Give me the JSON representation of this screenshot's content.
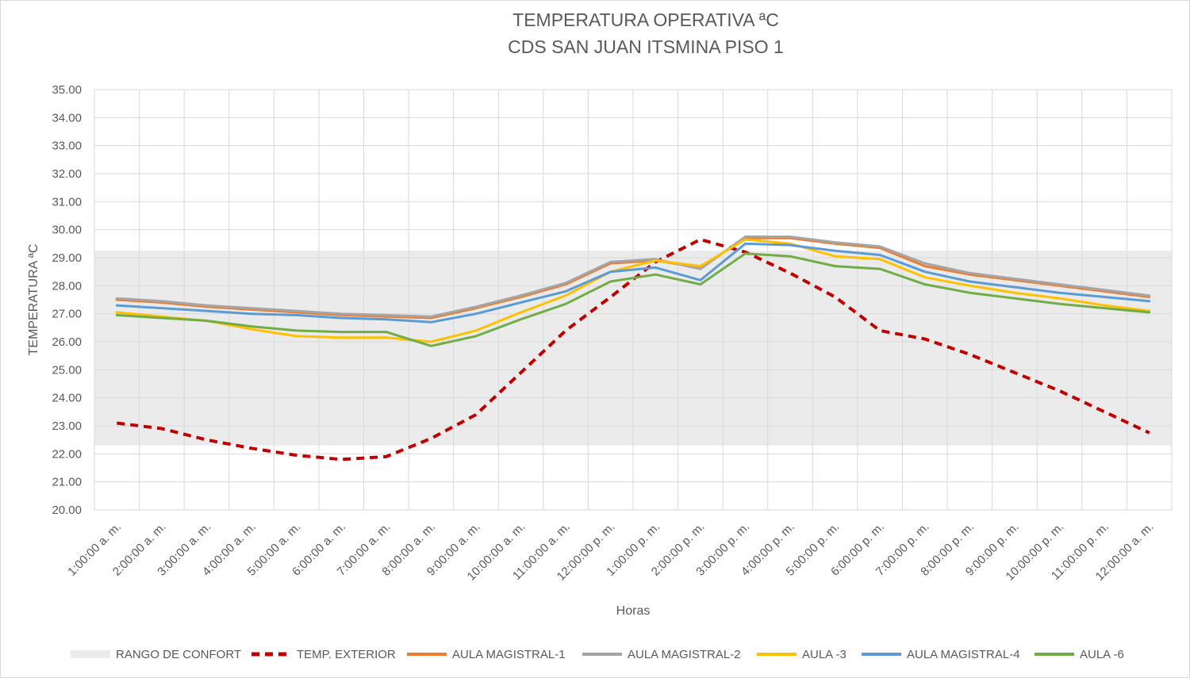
{
  "chart_data": {
    "type": "line",
    "title": "TEMPERATURA OPERATIVA ªC",
    "subtitle": "CDS SAN JUAN ITSMINA PISO 1",
    "xlabel": "Horas",
    "ylabel": "TEMPERATURA ªC",
    "ylim": [
      20,
      35
    ],
    "ystep": 1,
    "grid": true,
    "legend_position": "bottom",
    "categories": [
      "1:00:00 a. m.",
      "2:00:00 a. m.",
      "3:00:00 a. m.",
      "4:00:00 a. m.",
      "5:00:00 a. m.",
      "6:00:00 a. m.",
      "7:00:00 a. m.",
      "8:00:00 a. m.",
      "9:00:00 a. m.",
      "10:00:00 a. m.",
      "11:00:00 a. m.",
      "12:00:00 p. m.",
      "1:00:00 p. m.",
      "2:00:00 p. m.",
      "3:00:00 p. m.",
      "4:00:00 p. m.",
      "5:00:00 p. m.",
      "6:00:00 p. m.",
      "7:00:00 p. m.",
      "8:00:00 p. m.",
      "9:00:00 p. m.",
      "10:00:00 p. m.",
      "11:00:00 p. m.",
      "12:00:00 a. m."
    ],
    "comfort_band": {
      "name": "RANGO DE CONFORT",
      "low": 22.3,
      "high": 29.25,
      "color": "#ebebeb"
    },
    "series": [
      {
        "name": "TEMP. EXTERIOR",
        "color": "#c00000",
        "dashed": true,
        "width": 4,
        "values": [
          23.1,
          22.9,
          22.5,
          22.2,
          21.95,
          21.8,
          21.9,
          22.55,
          23.4,
          24.9,
          26.4,
          27.6,
          28.85,
          29.65,
          29.2,
          28.45,
          27.6,
          26.4,
          26.1,
          25.55,
          24.9,
          24.25,
          23.5,
          22.75
        ]
      },
      {
        "name": "AULA MAGISTRAL-1",
        "color": "#ed7d31",
        "dashed": false,
        "width": 3,
        "values": [
          27.5,
          27.4,
          27.25,
          27.15,
          27.05,
          26.95,
          26.9,
          26.85,
          27.2,
          27.6,
          28.05,
          28.8,
          28.9,
          28.65,
          29.7,
          29.7,
          29.5,
          29.35,
          28.7,
          28.4,
          28.2,
          28.0,
          27.8,
          27.6
        ]
      },
      {
        "name": "AULA MAGISTRAL-2",
        "color": "#a5a5a5",
        "dashed": false,
        "width": 3,
        "values": [
          27.55,
          27.45,
          27.3,
          27.2,
          27.1,
          27.0,
          26.95,
          26.9,
          27.25,
          27.65,
          28.1,
          28.85,
          28.95,
          28.6,
          29.75,
          29.75,
          29.55,
          29.4,
          28.8,
          28.45,
          28.25,
          28.05,
          27.85,
          27.65
        ]
      },
      {
        "name": "AULA -3",
        "color": "#ffc000",
        "dashed": false,
        "width": 3,
        "values": [
          27.05,
          26.9,
          26.75,
          26.45,
          26.2,
          26.15,
          26.15,
          26.0,
          26.4,
          27.05,
          27.65,
          28.5,
          28.9,
          28.7,
          29.65,
          29.5,
          29.05,
          28.95,
          28.3,
          28.0,
          27.75,
          27.55,
          27.3,
          27.1
        ]
      },
      {
        "name": "AULA MAGISTRAL-4",
        "color": "#5b9bd5",
        "dashed": false,
        "width": 3,
        "values": [
          27.3,
          27.2,
          27.1,
          27.0,
          26.95,
          26.85,
          26.8,
          26.7,
          27.0,
          27.4,
          27.8,
          28.5,
          28.65,
          28.2,
          29.5,
          29.45,
          29.25,
          29.1,
          28.5,
          28.15,
          27.95,
          27.75,
          27.6,
          27.45
        ]
      },
      {
        "name": "AULA -6",
        "color": "#70ad47",
        "dashed": false,
        "width": 3,
        "values": [
          26.95,
          26.85,
          26.75,
          26.55,
          26.4,
          26.35,
          26.35,
          25.85,
          26.2,
          26.8,
          27.35,
          28.15,
          28.4,
          28.05,
          29.15,
          29.05,
          28.7,
          28.6,
          28.05,
          27.75,
          27.55,
          27.35,
          27.2,
          27.05
        ]
      }
    ]
  }
}
